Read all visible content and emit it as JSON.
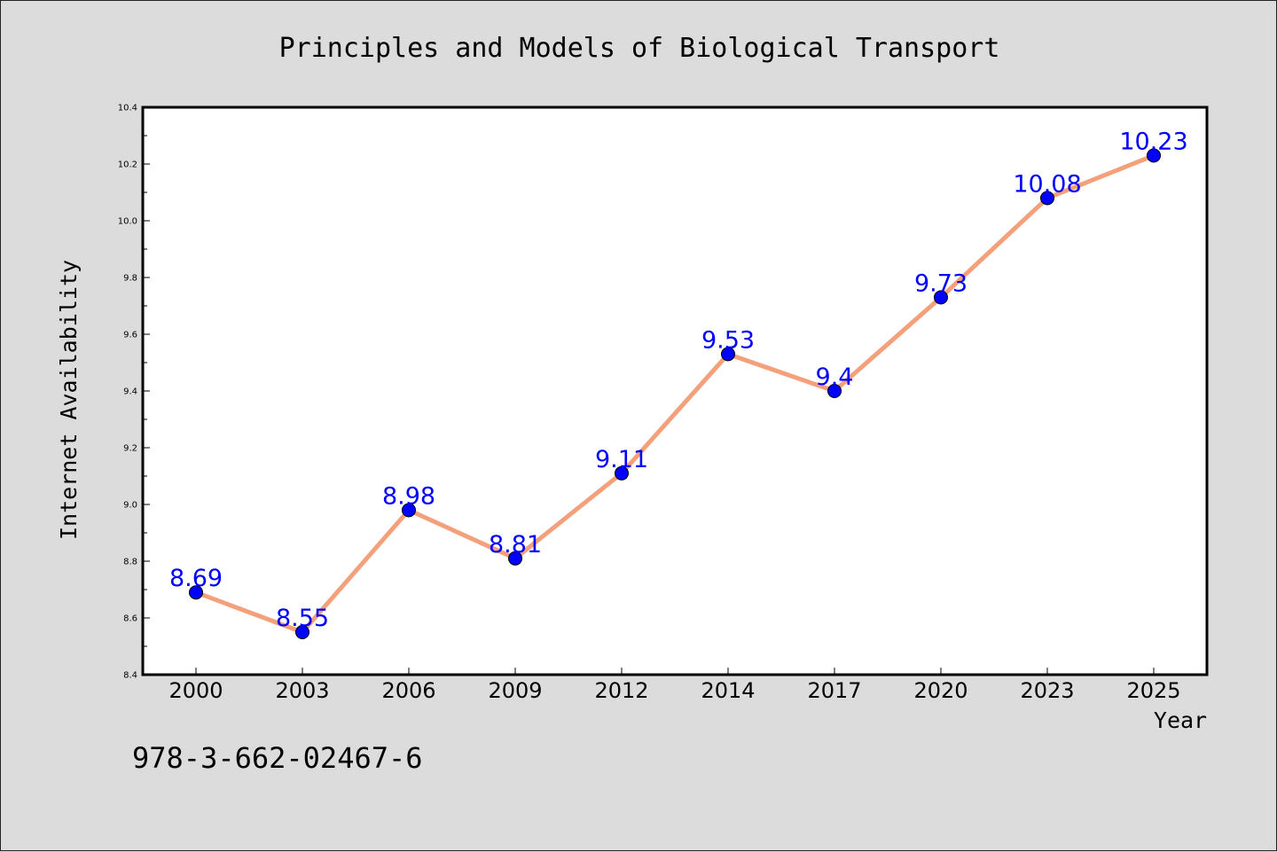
{
  "chart_data": {
    "type": "line",
    "title": "Principles and Models of Biological Transport",
    "xlabel": "Year",
    "ylabel": "Internet Availability",
    "categories": [
      "2000",
      "2003",
      "2006",
      "2009",
      "2012",
      "2014",
      "2017",
      "2020",
      "2023",
      "2025"
    ],
    "series": [
      {
        "values": [
          8.69,
          8.55,
          8.98,
          8.81,
          9.11,
          9.53,
          9.4,
          9.73,
          10.08,
          10.23
        ]
      }
    ],
    "data_labels": [
      "8.69",
      "8.55",
      "8.98",
      "8.81",
      "9.11",
      "9.53",
      "9.4",
      "9.73",
      "10.08",
      "10.23"
    ],
    "ylim": [
      8.4,
      10.4
    ],
    "yticks": [
      "8.4",
      "8.6",
      "8.8",
      "9.0",
      "9.2",
      "9.4",
      "9.6",
      "9.8",
      "10.0",
      "10.2",
      "10.4"
    ],
    "grid": false,
    "legend": "none",
    "colors": {
      "line": "#f4a07a",
      "marker": "#0000ff",
      "label": "#0000ff",
      "background": "#dcdcdc",
      "plot_background": "#ffffff"
    }
  },
  "footer": {
    "code": "978-3-662-02467-6"
  }
}
